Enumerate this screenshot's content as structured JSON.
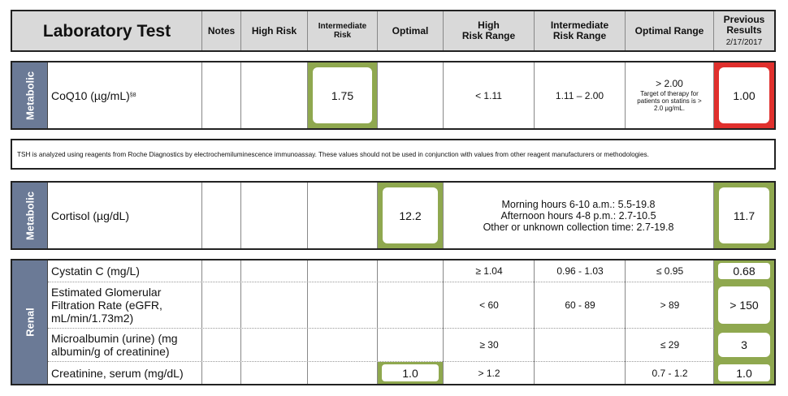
{
  "header": {
    "laboratory_test": "Laboratory Test",
    "notes": "Notes",
    "high_risk": "High Risk",
    "intermediate_risk_l1": "Intermediate",
    "intermediate_risk_l2": "Risk",
    "optimal": "Optimal",
    "high_risk_range_l1": "High",
    "high_risk_range_l2": "Risk Range",
    "intermediate_risk_range_l1": "Intermediate",
    "intermediate_risk_range_l2": "Risk Range",
    "optimal_range": "Optimal Range",
    "previous_results_l1": "Previous",
    "previous_results_l2": "Results",
    "previous_results_date": "2/17/2017"
  },
  "section1": {
    "category": "Metabolic",
    "test_name": "CoQ10 (µg/mL)",
    "superscript": "§8",
    "value": "1.75",
    "value_status": "intermediate",
    "high_risk_range": "< 1.11",
    "intermediate_risk_range": "1.11 – 2.00",
    "optimal_range": "> 2.00",
    "optimal_range_note_l1": "Target of therapy for",
    "optimal_range_note_l2": "patients on statins is >",
    "optimal_range_note_l3": "2.0 µg/mL.",
    "previous": "1.00",
    "previous_status": "high"
  },
  "note": "TSH is analyzed using reagents from Roche Diagnostics by electrochemiluminescence immunoassay. These values should not be used in conjunction with values from other reagent manufacturers or methodologies.",
  "section2": {
    "category": "Metabolic",
    "test_name": "Cortisol (µg/dL)",
    "value": "12.2",
    "value_status": "optimal",
    "range_l1": "Morning hours 6-10 a.m.: 5.5-19.8",
    "range_l2": "Afternoon hours 4-8 p.m.: 2.7-10.5",
    "range_l3": "Other or unknown collection time: 2.7-19.8",
    "previous": "11.7",
    "previous_status": "optimal"
  },
  "section3": {
    "category": "Renal",
    "rows": [
      {
        "test_name_l1": "Cystatin C (mg/L)",
        "high_risk_range": "≥ 1.04",
        "intermediate_risk_range": "0.96 - 1.03",
        "optimal_range": "≤ 0.95",
        "previous": "0.68"
      },
      {
        "test_name_l1": "Estimated Glomerular",
        "test_name_l2": "Filtration Rate (eGFR,",
        "test_name_l3": "mL/min/1.73m2)",
        "high_risk_range": "< 60",
        "intermediate_risk_range": "60 - 89",
        "optimal_range": "> 89",
        "previous": "> 150"
      },
      {
        "test_name_l1": "Microalbumin (urine) (mg",
        "test_name_l2": "albumin/g of creatinine)",
        "high_risk_range": "≥ 30",
        "intermediate_risk_range": "",
        "optimal_range": "≤ 29",
        "previous": "3"
      },
      {
        "test_name_l1": "Creatinine, serum (mg/dL)",
        "value": "1.0",
        "value_status": "optimal",
        "high_risk_range": "> 1.2",
        "intermediate_risk_range": "",
        "optimal_range": "0.7 - 1.2",
        "previous": "1.0"
      }
    ]
  },
  "colors": {
    "header_bg": "#d9d9d9",
    "category_strip": "#6b7a96",
    "optimal_green": "#8fa84f",
    "high_red": "#e0302d"
  }
}
